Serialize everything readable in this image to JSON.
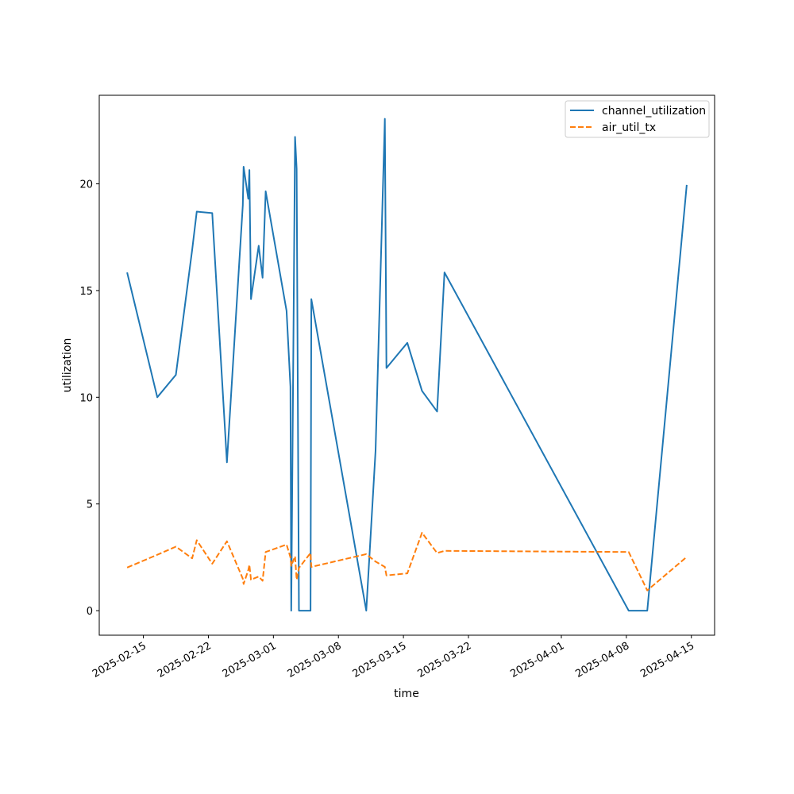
{
  "chart_data": {
    "type": "line",
    "title": "",
    "xlabel": "time",
    "ylabel": "utilization",
    "x_type": "date",
    "xlim": [
      "2025-02-10T06:00",
      "2025-04-17T12:00"
    ],
    "ylim": [
      -1.15,
      24.15
    ],
    "x_ticks": [
      {
        "date": "2025-02-15",
        "label": "2025-02-15"
      },
      {
        "date": "2025-02-22",
        "label": "2025-02-22"
      },
      {
        "date": "2025-03-01",
        "label": "2025-03-01"
      },
      {
        "date": "2025-03-08",
        "label": "2025-03-08"
      },
      {
        "date": "2025-03-15",
        "label": "2025-03-15"
      },
      {
        "date": "2025-03-22",
        "label": "2025-03-22"
      },
      {
        "date": "2025-04-01",
        "label": "2025-04-01"
      },
      {
        "date": "2025-04-08",
        "label": "2025-04-08"
      },
      {
        "date": "2025-04-15",
        "label": "2025-04-15"
      }
    ],
    "y_ticks": [
      {
        "value": 0,
        "label": "0"
      },
      {
        "value": 5,
        "label": "5"
      },
      {
        "value": 10,
        "label": "10"
      },
      {
        "value": 15,
        "label": "15"
      },
      {
        "value": 20,
        "label": "20"
      }
    ],
    "grid": false,
    "legend_position": "top-right",
    "series": [
      {
        "name": "channel_utilization",
        "color": "#1f77b4",
        "style": "solid",
        "points": [
          {
            "x": "2025-02-13T06:00",
            "y": 15.85
          },
          {
            "x": "2025-02-16T12:00",
            "y": 10.0
          },
          {
            "x": "2025-02-18T12:00",
            "y": 11.05
          },
          {
            "x": "2025-02-20T06:00",
            "y": 16.9
          },
          {
            "x": "2025-02-20T18:00",
            "y": 18.7
          },
          {
            "x": "2025-02-22T10:00",
            "y": 18.63
          },
          {
            "x": "2025-02-24T00:00",
            "y": 6.95
          },
          {
            "x": "2025-02-25T17:00",
            "y": 19.0
          },
          {
            "x": "2025-02-25T19:00",
            "y": 20.8
          },
          {
            "x": "2025-02-26T07:00",
            "y": 19.3
          },
          {
            "x": "2025-02-26T10:00",
            "y": 20.65
          },
          {
            "x": "2025-02-26T14:00",
            "y": 14.6
          },
          {
            "x": "2025-02-27T10:00",
            "y": 17.1
          },
          {
            "x": "2025-02-27T20:00",
            "y": 15.6
          },
          {
            "x": "2025-02-28T04:00",
            "y": 19.65
          },
          {
            "x": "2025-03-02T10:00",
            "y": 14.05
          },
          {
            "x": "2025-03-02T20:00",
            "y": 10.5
          },
          {
            "x": "2025-03-02T22:00",
            "y": 0.0
          },
          {
            "x": "2025-03-03T08:00",
            "y": 22.2
          },
          {
            "x": "2025-03-03T12:00",
            "y": 20.7
          },
          {
            "x": "2025-03-03T18:00",
            "y": 0.0
          },
          {
            "x": "2025-03-05T00:00",
            "y": 0.0
          },
          {
            "x": "2025-03-05T02:00",
            "y": 14.6
          },
          {
            "x": "2025-03-11T00:00",
            "y": 0.0
          },
          {
            "x": "2025-03-12T00:00",
            "y": 7.5
          },
          {
            "x": "2025-03-13T00:00",
            "y": 23.05
          },
          {
            "x": "2025-03-13T04:00",
            "y": 11.37
          },
          {
            "x": "2025-03-15T10:00",
            "y": 12.55
          },
          {
            "x": "2025-03-17T00:00",
            "y": 10.3
          },
          {
            "x": "2025-03-18T15:00",
            "y": 9.33
          },
          {
            "x": "2025-03-19T10:00",
            "y": 15.85
          },
          {
            "x": "2025-04-08T06:00",
            "y": 0.0
          },
          {
            "x": "2025-04-10T06:00",
            "y": 0.0
          },
          {
            "x": "2025-04-14T12:00",
            "y": 19.95
          }
        ]
      },
      {
        "name": "air_util_tx",
        "color": "#ff7f0e",
        "style": "dashed",
        "points": [
          {
            "x": "2025-02-13T06:00",
            "y": 2.02
          },
          {
            "x": "2025-02-16T12:00",
            "y": 2.62
          },
          {
            "x": "2025-02-18T12:00",
            "y": 3.0
          },
          {
            "x": "2025-02-20T06:00",
            "y": 2.45
          },
          {
            "x": "2025-02-20T18:00",
            "y": 3.3
          },
          {
            "x": "2025-02-22T10:00",
            "y": 2.2
          },
          {
            "x": "2025-02-24T00:00",
            "y": 3.25
          },
          {
            "x": "2025-02-25T17:00",
            "y": 1.5
          },
          {
            "x": "2025-02-25T19:00",
            "y": 1.25
          },
          {
            "x": "2025-02-26T07:00",
            "y": 1.9
          },
          {
            "x": "2025-02-26T10:00",
            "y": 2.15
          },
          {
            "x": "2025-02-26T14:00",
            "y": 1.45
          },
          {
            "x": "2025-02-27T10:00",
            "y": 1.6
          },
          {
            "x": "2025-02-27T20:00",
            "y": 1.4
          },
          {
            "x": "2025-02-28T04:00",
            "y": 2.75
          },
          {
            "x": "2025-03-02T10:00",
            "y": 3.1
          },
          {
            "x": "2025-03-02T20:00",
            "y": 2.5
          },
          {
            "x": "2025-03-02T22:00",
            "y": 2.1
          },
          {
            "x": "2025-03-03T08:00",
            "y": 2.55
          },
          {
            "x": "2025-03-03T12:00",
            "y": 1.45
          },
          {
            "x": "2025-03-03T18:00",
            "y": 2.0
          },
          {
            "x": "2025-03-05T00:00",
            "y": 2.7
          },
          {
            "x": "2025-03-05T02:00",
            "y": 2.05
          },
          {
            "x": "2025-03-11T00:00",
            "y": 2.65
          },
          {
            "x": "2025-03-12T00:00",
            "y": 2.3
          },
          {
            "x": "2025-03-13T00:00",
            "y": 2.05
          },
          {
            "x": "2025-03-13T04:00",
            "y": 1.65
          },
          {
            "x": "2025-03-15T10:00",
            "y": 1.75
          },
          {
            "x": "2025-03-17T00:00",
            "y": 3.65
          },
          {
            "x": "2025-03-18T15:00",
            "y": 2.7
          },
          {
            "x": "2025-03-19T10:00",
            "y": 2.8
          },
          {
            "x": "2025-04-08T06:00",
            "y": 2.75
          },
          {
            "x": "2025-04-10T06:00",
            "y": 0.95
          },
          {
            "x": "2025-04-14T12:00",
            "y": 2.52
          }
        ]
      }
    ]
  }
}
